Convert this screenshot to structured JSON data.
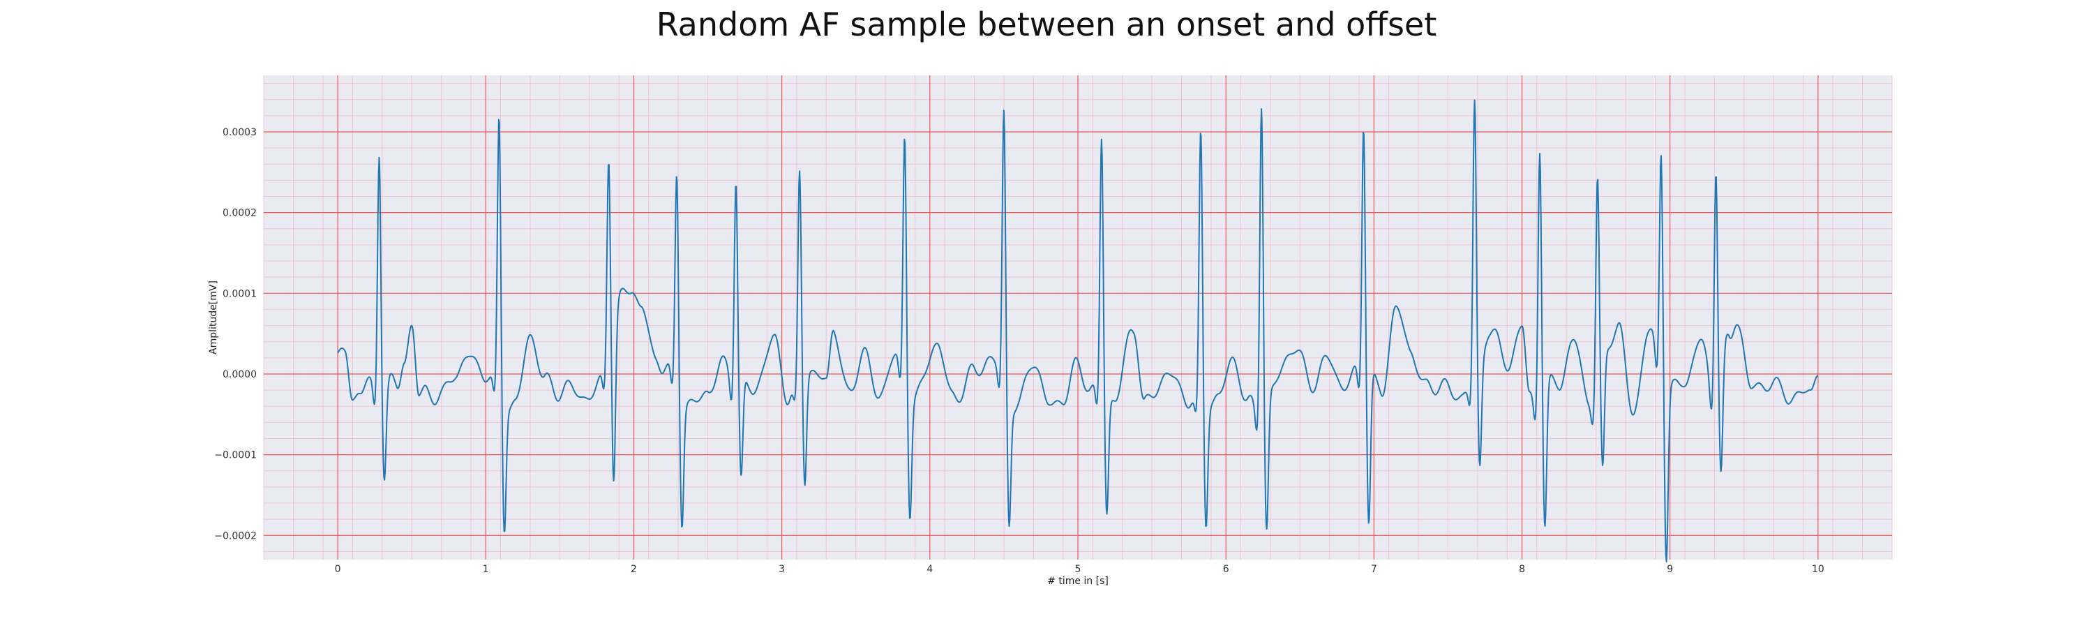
{
  "chart_data": {
    "type": "line",
    "title": "Random AF sample between an onset and offset",
    "xlabel": "# time in [s]",
    "ylabel": "Amplitude[mV]",
    "xlim": [
      -0.5,
      10.5
    ],
    "ylim": [
      -0.00023,
      0.00037
    ],
    "grid": true,
    "x_ticks": [
      0,
      1,
      2,
      3,
      4,
      5,
      6,
      7,
      8,
      9,
      10
    ],
    "y_ticks": [
      -0.0002,
      -0.0001,
      0.0,
      0.0001,
      0.0002,
      0.0003
    ],
    "y_tick_labels": [
      "−0.0002",
      "−0.0001",
      "0.0000",
      "0.0001",
      "0.0002",
      "0.0003"
    ],
    "series": [
      {
        "color": "#1f77b4",
        "baseline": [
          [
            0.0,
            2e-05
          ],
          [
            0.05,
            2.5e-05
          ],
          [
            0.1,
            -3e-05
          ],
          [
            0.15,
            -2e-05
          ],
          [
            0.2,
            -1e-05
          ],
          [
            0.25,
            -2e-05
          ],
          [
            0.35,
            -1e-05
          ],
          [
            0.4,
            -2e-05
          ],
          [
            0.45,
            2e-05
          ],
          [
            0.5,
            6e-05
          ],
          [
            0.55,
            -3e-05
          ],
          [
            0.6,
            -2e-05
          ],
          [
            0.7,
            -3e-05
          ],
          [
            0.8,
            5e-06
          ],
          [
            0.9,
            2e-05
          ],
          [
            1.0,
            0.0
          ],
          [
            1.2,
            -4e-05
          ],
          [
            1.3,
            5e-05
          ],
          [
            1.4,
            -1e-05
          ],
          [
            1.5,
            -2e-05
          ],
          [
            1.6,
            -2e-05
          ],
          [
            1.7,
            -3e-05
          ],
          [
            1.98,
            0.00011
          ],
          [
            2.05,
            8e-05
          ],
          [
            2.15,
            2e-05
          ],
          [
            2.2,
            1e-05
          ],
          [
            2.4,
            -4e-05
          ],
          [
            2.5,
            -2e-05
          ],
          [
            2.6,
            1e-05
          ],
          [
            2.8,
            -2e-05
          ],
          [
            2.95,
            4e-05
          ],
          [
            3.05,
            -3e-05
          ],
          [
            3.15,
            1e-05
          ],
          [
            3.3,
            -1e-05
          ],
          [
            3.35,
            6e-05
          ],
          [
            3.45,
            -3e-05
          ],
          [
            3.55,
            3e-05
          ],
          [
            3.65,
            -3e-05
          ],
          [
            3.75,
            2e-05
          ],
          [
            3.9,
            -3e-05
          ],
          [
            4.05,
            4e-05
          ],
          [
            4.15,
            -3e-05
          ],
          [
            4.3,
            0.0
          ],
          [
            4.4,
            2e-05
          ],
          [
            4.6,
            -4e-05
          ],
          [
            4.7,
            2e-05
          ],
          [
            4.8,
            -4e-05
          ],
          [
            4.9,
            -3e-05
          ],
          [
            5.0,
            1e-05
          ],
          [
            5.1,
            -2e-05
          ],
          [
            5.25,
            -3e-05
          ],
          [
            5.38,
            6e-05
          ],
          [
            5.45,
            -4e-05
          ],
          [
            5.6,
            0.0
          ],
          [
            5.75,
            -3e-05
          ],
          [
            5.95,
            -3e-05
          ],
          [
            6.05,
            2e-05
          ],
          [
            6.15,
            -4e-05
          ],
          [
            6.25,
            -4e-05
          ],
          [
            6.45,
            3e-05
          ],
          [
            6.6,
            -1e-05
          ],
          [
            6.7,
            2e-05
          ],
          [
            6.8,
            -2e-05
          ],
          [
            6.9,
            1e-05
          ],
          [
            7.05,
            -2e-05
          ],
          [
            7.15,
            8e-05
          ],
          [
            7.25,
            3e-05
          ],
          [
            7.35,
            -2e-05
          ],
          [
            7.45,
            -1e-05
          ],
          [
            7.55,
            -3e-05
          ],
          [
            7.7,
            0.0
          ],
          [
            7.78,
            6e-05
          ],
          [
            7.9,
            1e-05
          ],
          [
            8.0,
            6e-05
          ],
          [
            8.05,
            -3e-05
          ],
          [
            8.25,
            -1e-05
          ],
          [
            8.35,
            4e-05
          ],
          [
            8.45,
            -3e-05
          ],
          [
            8.65,
            6e-05
          ],
          [
            8.75,
            -5e-05
          ],
          [
            8.85,
            5e-05
          ],
          [
            9.0,
            -2e-05
          ],
          [
            9.1,
            -1e-05
          ],
          [
            9.2,
            4e-05
          ],
          [
            9.3,
            -2e-05
          ],
          [
            9.4,
            4e-05
          ],
          [
            9.45,
            7e-05
          ],
          [
            9.55,
            -2e-05
          ],
          [
            9.65,
            -1e-05
          ],
          [
            9.75,
            -2e-05
          ],
          [
            9.85,
            -3e-05
          ],
          [
            9.95,
            -2e-05
          ],
          [
            10.0,
            5e-06
          ]
        ],
        "beats": [
          [
            0.28,
            0.00028,
            -0.00011
          ],
          [
            1.09,
            0.000315,
            -0.00016
          ],
          [
            1.83,
            0.00028,
            -0.00019
          ],
          [
            2.29,
            0.00025,
            -0.000155
          ],
          [
            2.69,
            0.00025,
            -0.000125
          ],
          [
            3.12,
            0.00025,
            -0.00014
          ],
          [
            3.83,
            0.0003,
            -0.000145
          ],
          [
            4.5,
            0.000325,
            -0.000158
          ],
          [
            5.16,
            0.000295,
            -0.000145
          ],
          [
            5.83,
            0.000295,
            -0.000155
          ],
          [
            6.24,
            0.000345,
            -0.00016
          ],
          [
            6.93,
            0.00032,
            -0.000185
          ],
          [
            7.68,
            0.000335,
            -0.00013
          ],
          [
            8.12,
            0.00029,
            -0.000173
          ],
          [
            8.51,
            0.000242,
            -0.00014
          ],
          [
            8.94,
            0.000285,
            -0.00021
          ],
          [
            9.31,
            0.000265,
            -0.00013
          ]
        ]
      }
    ]
  }
}
